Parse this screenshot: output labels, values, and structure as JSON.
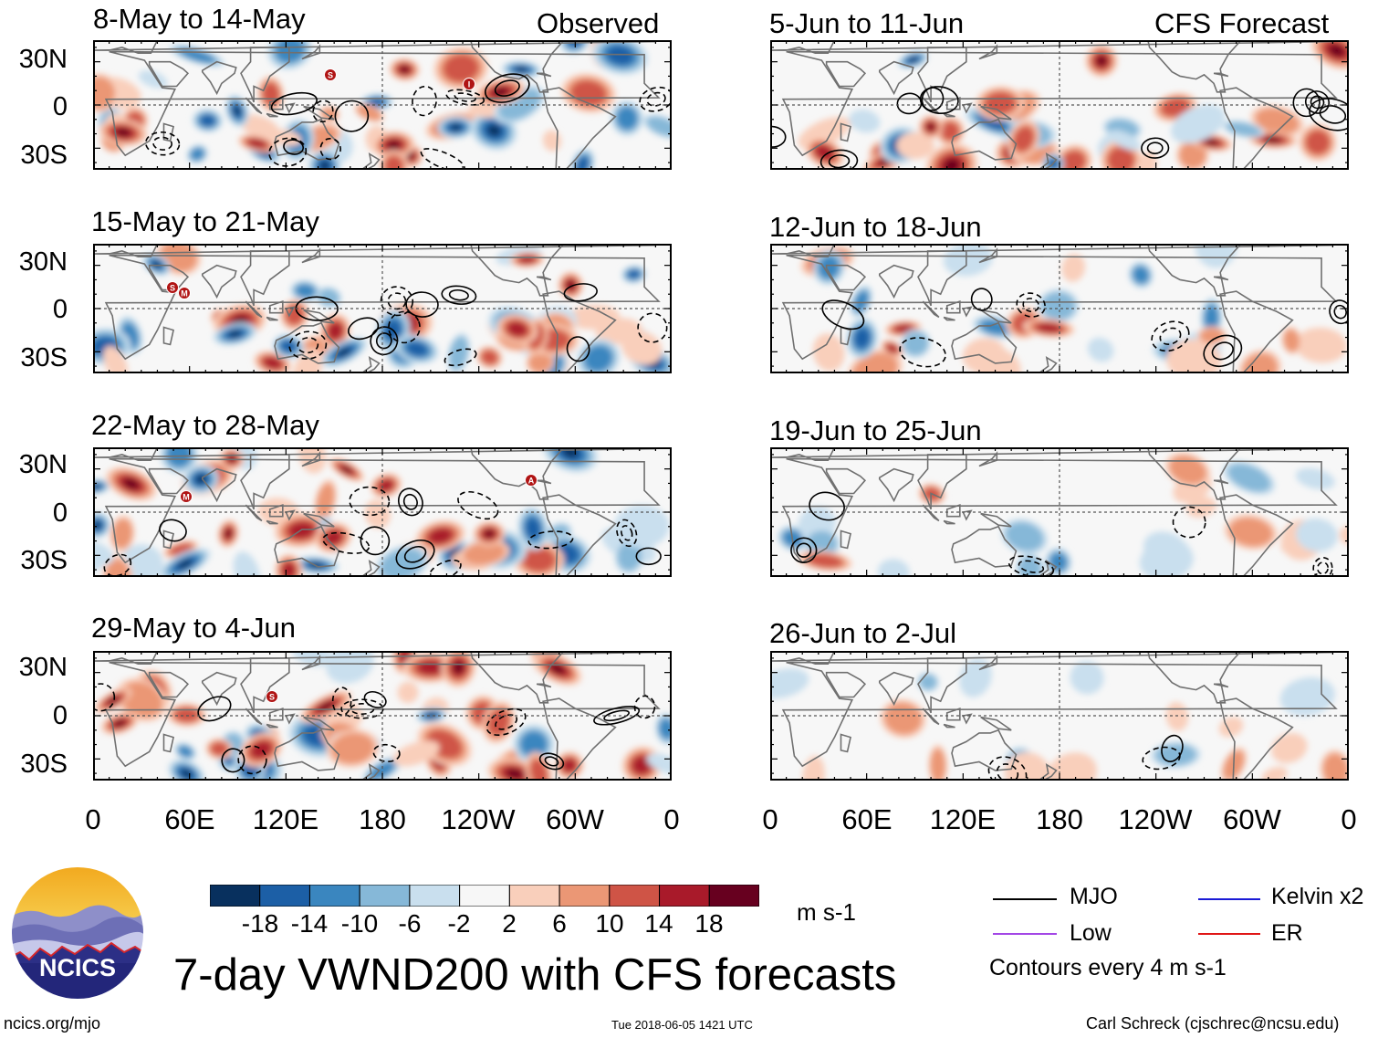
{
  "columns": {
    "observed_label": "Observed",
    "forecast_label": "CFS Forecast"
  },
  "observed_panels": [
    {
      "title": "8-May to 14-May"
    },
    {
      "title": "15-May to 21-May"
    },
    {
      "title": "22-May to 28-May"
    },
    {
      "title": "29-May to 4-Jun"
    }
  ],
  "forecast_panels": [
    {
      "title": "5-Jun to 11-Jun"
    },
    {
      "title": "12-Jun to 18-Jun"
    },
    {
      "title": "19-Jun to 25-Jun"
    },
    {
      "title": "26-Jun to 2-Jul"
    }
  ],
  "lat_labels": [
    "30N",
    "0",
    "30S"
  ],
  "lon_labels": [
    "0",
    "60E",
    "120E",
    "180",
    "120W",
    "60W",
    "0"
  ],
  "colorbar": {
    "ticks": [
      "-18",
      "-14",
      "-10",
      "-6",
      "-2",
      "2",
      "6",
      "10",
      "14",
      "18"
    ],
    "units": "m s-1",
    "colors": [
      "#08305e",
      "#1c5fa6",
      "#3a86bf",
      "#86b8d8",
      "#c9dfee",
      "#f7f7f7",
      "#f9cfbb",
      "#eb9775",
      "#cf5446",
      "#a91a2a",
      "#67001f"
    ]
  },
  "title": "7-day VWND200 with CFS forecasts",
  "legend": {
    "mjo": "MJO",
    "low": "Low",
    "kelvin": "Kelvin x2",
    "er": "ER",
    "contours_note": "Contours every 4 m s-1",
    "colors": {
      "mjo": "#000000",
      "low": "#a347e6",
      "kelvin": "#1a1ad6",
      "er": "#e01616"
    }
  },
  "logo": {
    "text": "NCICS"
  },
  "footer": {
    "url": "ncics.org/mjo",
    "timestamp": "Tue 2018-06-05 1421 UTC",
    "credit": "Carl Schreck (cjschrec@ncsu.edu)"
  },
  "storm_markers": [
    {
      "panel": 0,
      "label": "S"
    },
    {
      "panel": 0,
      "label": "I"
    },
    {
      "panel": 1,
      "label": "S"
    },
    {
      "panel": 1,
      "label": "M"
    },
    {
      "panel": 2,
      "label": "M"
    },
    {
      "panel": 2,
      "label": "A"
    },
    {
      "panel": 3,
      "label": "S"
    }
  ]
}
